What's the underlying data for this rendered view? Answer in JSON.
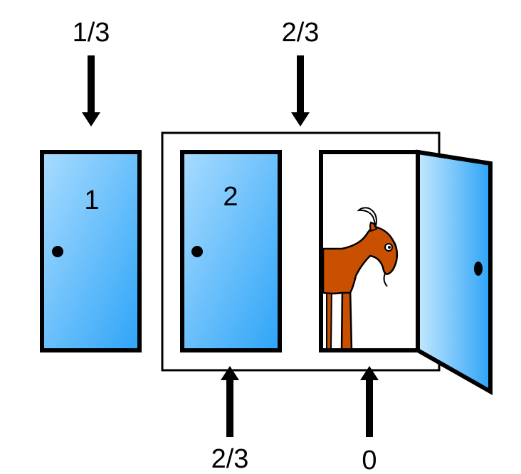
{
  "labels": {
    "door1_top": "1/3",
    "group_top": "2/3",
    "door2_bottom": "2/3",
    "door3_bottom": "0"
  },
  "doors": [
    {
      "number": "1"
    },
    {
      "number": "2"
    }
  ],
  "colors": {
    "door_light": "#a9dcff",
    "door_dark": "#2ea4f7",
    "goat": "#c85000",
    "outline": "#000000"
  }
}
